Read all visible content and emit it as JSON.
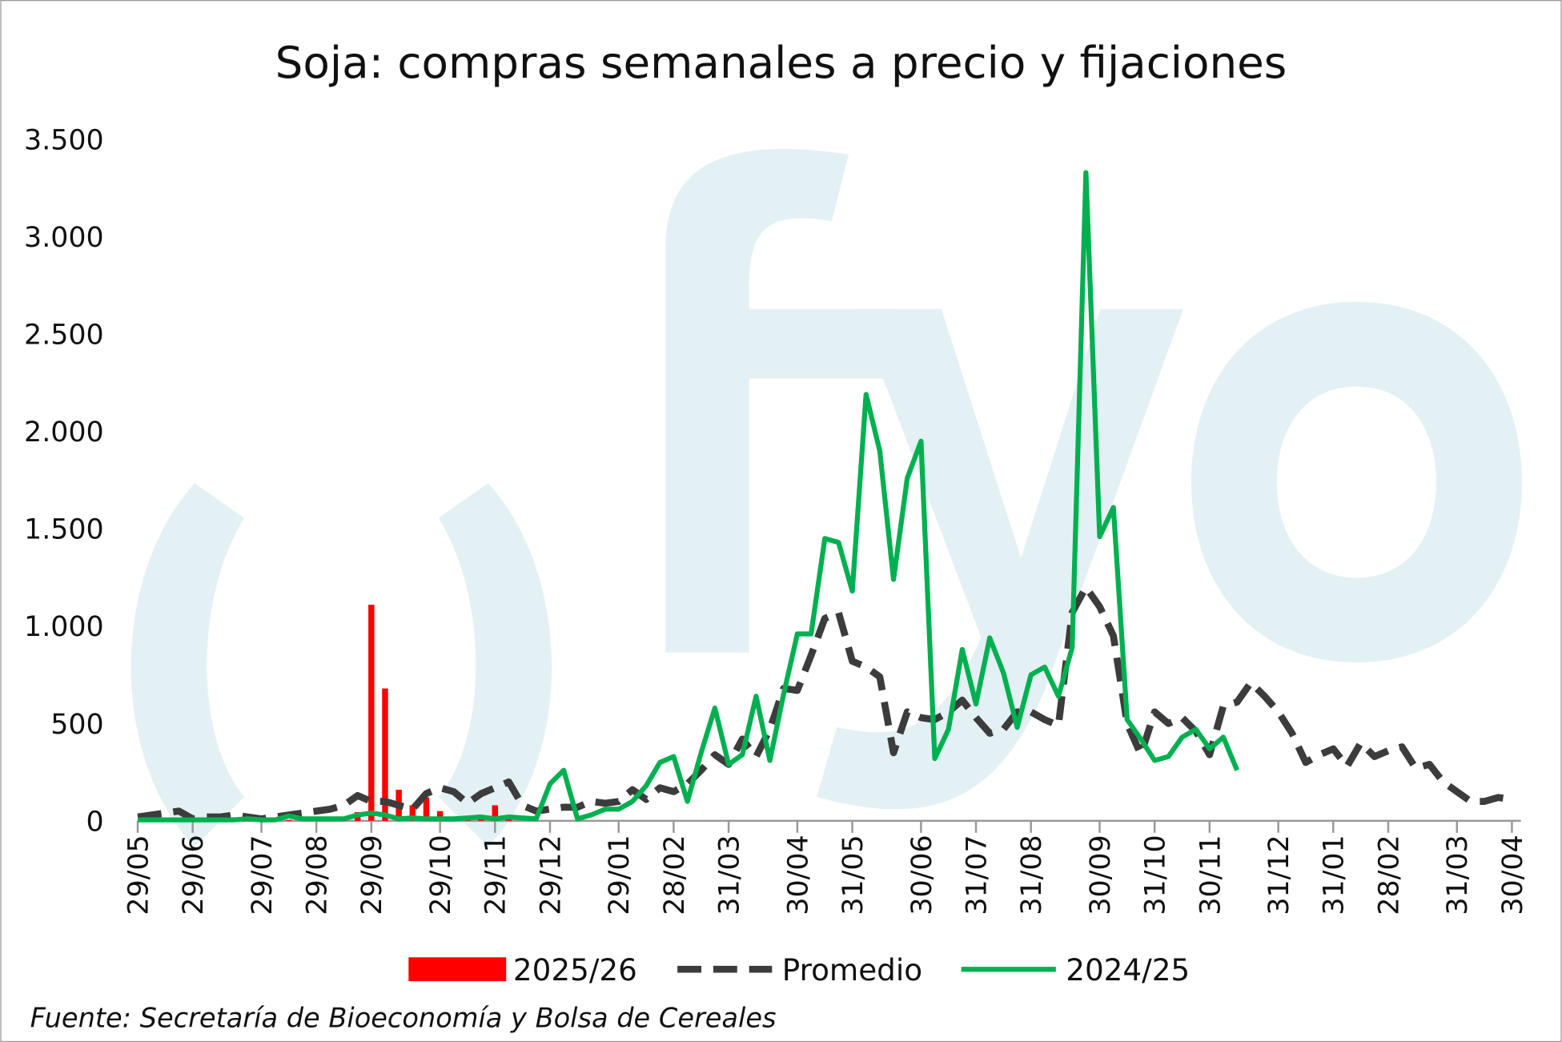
{
  "chart_data": {
    "type": "line",
    "title": "Soja: compras semanales a precio y fijaciones",
    "source": "Fuente: Secretaría de Bioeconomía y Bolsa de Cereales",
    "categories": [
      "29/05",
      null,
      null,
      null,
      "29/06",
      null,
      null,
      null,
      null,
      "29/07",
      null,
      null,
      null,
      "29/08",
      null,
      null,
      null,
      "29/09",
      null,
      null,
      null,
      null,
      "29/10",
      null,
      null,
      null,
      "29/11",
      null,
      null,
      null,
      "29/12",
      null,
      null,
      null,
      null,
      "29/01",
      null,
      null,
      null,
      "28/02",
      null,
      null,
      null,
      "31/03",
      null,
      null,
      null,
      null,
      "30/04",
      null,
      null,
      null,
      "31/05",
      null,
      null,
      null,
      null,
      "30/06",
      null,
      null,
      null,
      "31/07",
      null,
      null,
      null,
      "31/08",
      null,
      null,
      null,
      null,
      "30/09",
      null,
      null,
      null,
      "31/10",
      null,
      null,
      null,
      "30/11",
      null,
      null,
      null,
      null,
      "31/12",
      null,
      null,
      null,
      "31/01",
      null,
      null,
      null,
      "28/02",
      null,
      null,
      null,
      null,
      "31/03",
      null,
      null,
      null,
      "30/04"
    ],
    "series": [
      {
        "name": "2025/26",
        "kind": "bar",
        "color": "#ff0000",
        "values": [
          null,
          null,
          null,
          null,
          null,
          null,
          null,
          null,
          null,
          null,
          null,
          5,
          5,
          10,
          20,
          10,
          45,
          1110,
          680,
          160,
          80,
          120,
          50,
          15,
          20,
          30,
          80,
          20,
          null,
          null,
          null,
          null,
          null,
          null,
          null,
          null,
          null,
          null,
          null,
          null,
          null,
          null,
          null,
          null,
          null,
          null,
          null,
          null,
          null,
          null,
          null,
          null,
          null,
          null,
          null,
          null,
          null,
          null,
          null,
          null,
          null,
          null,
          null,
          null,
          null,
          null,
          null,
          null,
          null,
          null,
          null,
          null,
          null,
          null,
          null,
          null,
          null,
          null,
          null,
          null,
          null,
          null,
          null,
          null,
          null,
          null,
          null,
          null,
          null,
          null,
          null,
          null,
          null,
          null,
          null,
          null,
          null,
          null,
          null,
          null,
          null
        ]
      },
      {
        "name": "Promedio",
        "kind": "dashed",
        "color": "#3c3c3c",
        "values": [
          20,
          30,
          40,
          50,
          10,
          20,
          20,
          30,
          20,
          10,
          20,
          30,
          40,
          50,
          60,
          80,
          130,
          100,
          100,
          80,
          60,
          140,
          170,
          150,
          90,
          140,
          170,
          200,
          80,
          50,
          60,
          70,
          70,
          100,
          90,
          100,
          160,
          110,
          170,
          150,
          190,
          260,
          340,
          290,
          420,
          330,
          470,
          680,
          670,
          850,
          1040,
          1070,
          820,
          790,
          740,
          350,
          560,
          530,
          520,
          560,
          620,
          530,
          450,
          470,
          560,
          560,
          520,
          490,
          1070,
          1200,
          1100,
          950,
          500,
          340,
          560,
          500,
          530,
          460,
          340,
          590,
          610,
          710,
          640,
          560,
          450,
          300,
          340,
          370,
          280,
          400,
          330,
          360,
          380,
          270,
          290,
          200,
          150,
          100,
          100,
          120,
          110
        ]
      },
      {
        "name": "2024/25",
        "kind": "line",
        "color": "#00b050",
        "values": [
          5,
          5,
          5,
          5,
          5,
          5,
          5,
          5,
          10,
          5,
          5,
          25,
          10,
          10,
          10,
          10,
          30,
          40,
          30,
          10,
          15,
          10,
          10,
          10,
          15,
          20,
          10,
          20,
          15,
          10,
          190,
          260,
          10,
          30,
          60,
          60,
          100,
          180,
          300,
          330,
          100,
          350,
          580,
          290,
          340,
          640,
          310,
          650,
          960,
          960,
          1450,
          1430,
          1180,
          2190,
          1900,
          1240,
          1760,
          1950,
          320,
          470,
          880,
          600,
          940,
          760,
          480,
          750,
          790,
          640,
          890,
          3330,
          1460,
          1610,
          520,
          420,
          310,
          330,
          430,
          470,
          370,
          430,
          260,
          null,
          null,
          null,
          null,
          null,
          null,
          null,
          null,
          null,
          null,
          null,
          null,
          null,
          null,
          null,
          null,
          null,
          null,
          null,
          null
        ]
      }
    ],
    "ylim": [
      0,
      3500
    ],
    "yticks": [
      0,
      500,
      {
        "value": 1000,
        "label": "1.000"
      },
      {
        "value": 1500,
        "label": "1.500"
      },
      {
        "value": 2000,
        "label": "2.000"
      },
      {
        "value": 2500,
        "label": "2.500"
      },
      {
        "value": 3000,
        "label": "3.000"
      },
      {
        "value": 3500,
        "label": "3.500"
      }
    ],
    "legend": "bottom"
  }
}
